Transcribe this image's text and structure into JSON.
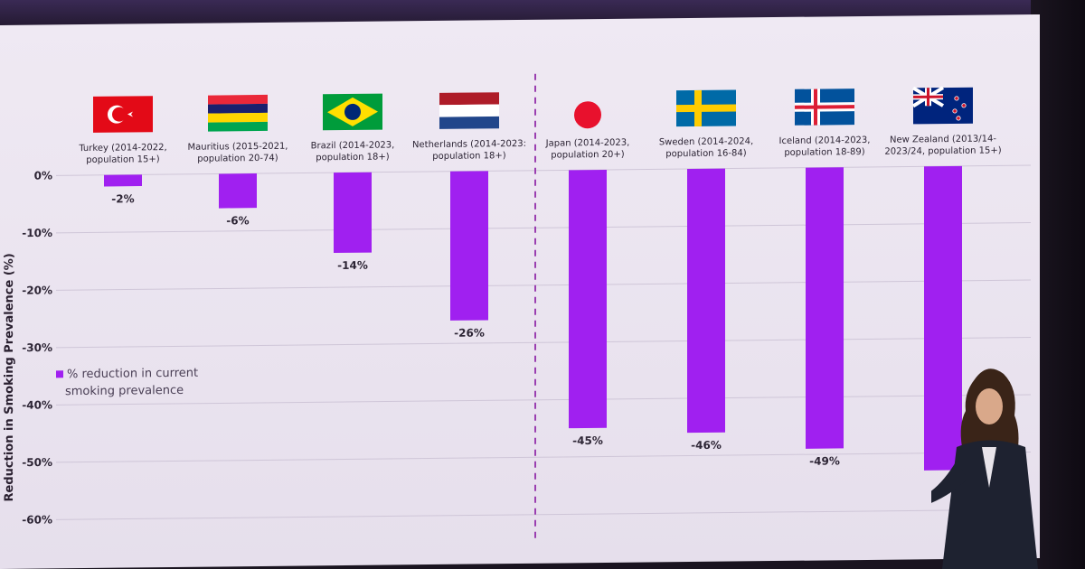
{
  "chart_data": {
    "type": "bar",
    "ylabel": "Reduction in Smoking Prevalence (%)",
    "ylim": [
      -60,
      0
    ],
    "yticks": [
      "0%",
      "-10%",
      "-20%",
      "-30%",
      "-40%",
      "-50%",
      "-60%"
    ],
    "ytick_values": [
      0,
      -10,
      -20,
      -30,
      -40,
      -50,
      -60
    ],
    "grid": true,
    "legend_position": "left-middle",
    "categories": [
      {
        "line1": "Turkey (2014-2022,",
        "line2": "population 15+)",
        "flag": "turkey-flag-icon"
      },
      {
        "line1": "Mauritius (2015-2021,",
        "line2": "population 20-74)",
        "flag": "mauritius-flag-icon"
      },
      {
        "line1": "Brazil (2014-2023,",
        "line2": "population 18+)",
        "flag": "brazil-flag-icon"
      },
      {
        "line1": "Netherlands (2014-2023:",
        "line2": "population 18+)",
        "flag": "netherlands-flag-icon"
      },
      {
        "line1": "Japan (2014-2023,",
        "line2": "population 20+)",
        "flag": "japan-flag-icon"
      },
      {
        "line1": "Sweden (2014-2024,",
        "line2": "population 16-84)",
        "flag": "sweden-flag-icon"
      },
      {
        "line1": "Iceland (2014-2023,",
        "line2": "population 18-89)",
        "flag": "iceland-flag-icon"
      },
      {
        "line1": "New Zealand (2013/14-",
        "line2": "2023/24, population 15+)",
        "flag": "new-zealand-flag-icon"
      }
    ],
    "series": [
      {
        "name": "% reduction in current smoking prevalence",
        "values": [
          -2,
          -6,
          -14,
          -26,
          -45,
          -46,
          -49,
          -53
        ],
        "labels": [
          "-2%",
          "-6%",
          "-14%",
          "-26%",
          "-45%",
          "-46%",
          "-49%",
          ""
        ]
      }
    ],
    "legend": {
      "line1": "% reduction in current",
      "line2": "smoking prevalence"
    },
    "bar_color": "#a020f0"
  }
}
